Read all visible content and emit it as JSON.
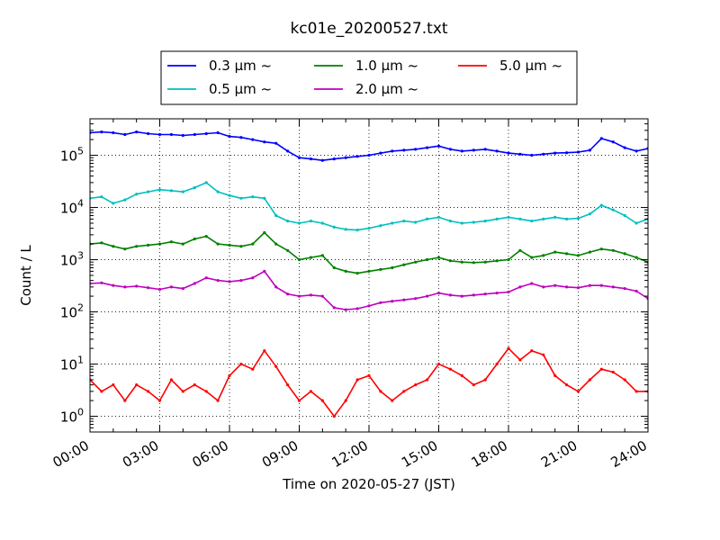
{
  "chart_data": {
    "type": "line",
    "title": "kc01e_20200527.txt",
    "xlabel": "Time on 2020-05-27 (JST)",
    "ylabel": "Count / L",
    "yscale": "log",
    "ylim": [
      0.5,
      500000
    ],
    "xlim": [
      "00:00",
      "24:00"
    ],
    "x_ticks": [
      "00:00",
      "03:00",
      "06:00",
      "09:00",
      "12:00",
      "15:00",
      "18:00",
      "21:00",
      "24:00"
    ],
    "y_ticks": [
      {
        "base": "10",
        "exp": "0",
        "value": 1
      },
      {
        "base": "10",
        "exp": "1",
        "value": 10
      },
      {
        "base": "10",
        "exp": "2",
        "value": 100
      },
      {
        "base": "10",
        "exp": "3",
        "value": 1000
      },
      {
        "base": "10",
        "exp": "4",
        "value": 10000
      },
      {
        "base": "10",
        "exp": "5",
        "value": 100000
      }
    ],
    "grid": true,
    "legend_position": "top-center",
    "x": [
      "00:00",
      "00:30",
      "01:00",
      "01:30",
      "02:00",
      "02:30",
      "03:00",
      "03:30",
      "04:00",
      "04:30",
      "05:00",
      "05:30",
      "06:00",
      "06:30",
      "07:00",
      "07:30",
      "08:00",
      "08:30",
      "09:00",
      "09:30",
      "10:00",
      "10:30",
      "11:00",
      "11:30",
      "12:00",
      "12:30",
      "13:00",
      "13:30",
      "14:00",
      "14:30",
      "15:00",
      "15:30",
      "16:00",
      "16:30",
      "17:00",
      "17:30",
      "18:00",
      "18:30",
      "19:00",
      "19:30",
      "20:00",
      "20:30",
      "21:00",
      "21:30",
      "22:00",
      "22:30",
      "23:00",
      "23:30",
      "24:00"
    ],
    "series": [
      {
        "name": "0.3 μm ~",
        "color": "#0000ff",
        "values": [
          270000,
          280000,
          270000,
          250000,
          280000,
          260000,
          250000,
          250000,
          240000,
          250000,
          260000,
          270000,
          230000,
          220000,
          200000,
          180000,
          170000,
          120000,
          90000,
          85000,
          80000,
          85000,
          90000,
          95000,
          100000,
          110000,
          120000,
          125000,
          130000,
          140000,
          150000,
          130000,
          120000,
          125000,
          130000,
          120000,
          110000,
          105000,
          100000,
          105000,
          110000,
          112000,
          115000,
          125000,
          210000,
          180000,
          140000,
          120000,
          135000
        ]
      },
      {
        "name": "0.5 μm ~",
        "color": "#00bfbf",
        "values": [
          15000,
          16000,
          12000,
          14000,
          18000,
          20000,
          22000,
          21000,
          20000,
          24000,
          30000,
          20000,
          17000,
          15000,
          16000,
          15000,
          7000,
          5500,
          5000,
          5500,
          5000,
          4200,
          3800,
          3700,
          4000,
          4500,
          5000,
          5500,
          5200,
          6000,
          6500,
          5500,
          5000,
          5200,
          5500,
          6000,
          6500,
          6000,
          5500,
          6000,
          6500,
          6000,
          6200,
          7500,
          11000,
          9000,
          7000,
          5000,
          6000
        ]
      },
      {
        "name": "1.0 μm ~",
        "color": "#008000",
        "values": [
          2000,
          2100,
          1800,
          1600,
          1800,
          1900,
          2000,
          2200,
          2000,
          2500,
          2800,
          2000,
          1900,
          1800,
          2000,
          3300,
          2000,
          1500,
          1000,
          1100,
          1200,
          700,
          600,
          550,
          600,
          650,
          700,
          800,
          900,
          1000,
          1100,
          950,
          900,
          880,
          900,
          950,
          1000,
          1500,
          1100,
          1200,
          1400,
          1300,
          1200,
          1400,
          1600,
          1500,
          1300,
          1100,
          900
        ]
      },
      {
        "name": "2.0 μm ~",
        "color": "#bf00bf",
        "values": [
          350,
          360,
          320,
          300,
          310,
          290,
          270,
          300,
          280,
          350,
          450,
          400,
          380,
          400,
          450,
          600,
          300,
          220,
          200,
          210,
          200,
          120,
          110,
          115,
          130,
          150,
          160,
          170,
          180,
          200,
          230,
          210,
          200,
          210,
          220,
          230,
          240,
          300,
          350,
          300,
          320,
          300,
          290,
          320,
          320,
          300,
          280,
          250,
          180
        ]
      },
      {
        "name": "5.0 μm ~",
        "color": "#ff0000",
        "values": [
          5,
          3,
          4,
          2,
          4,
          3,
          2,
          5,
          3,
          4,
          3,
          2,
          6,
          10,
          8,
          18,
          9,
          4,
          2,
          3,
          2,
          1,
          2,
          5,
          6,
          3,
          2,
          3,
          4,
          5,
          10,
          8,
          6,
          4,
          5,
          10,
          20,
          12,
          18,
          15,
          6,
          4,
          3,
          5,
          8,
          7,
          5,
          3,
          3
        ]
      }
    ]
  }
}
